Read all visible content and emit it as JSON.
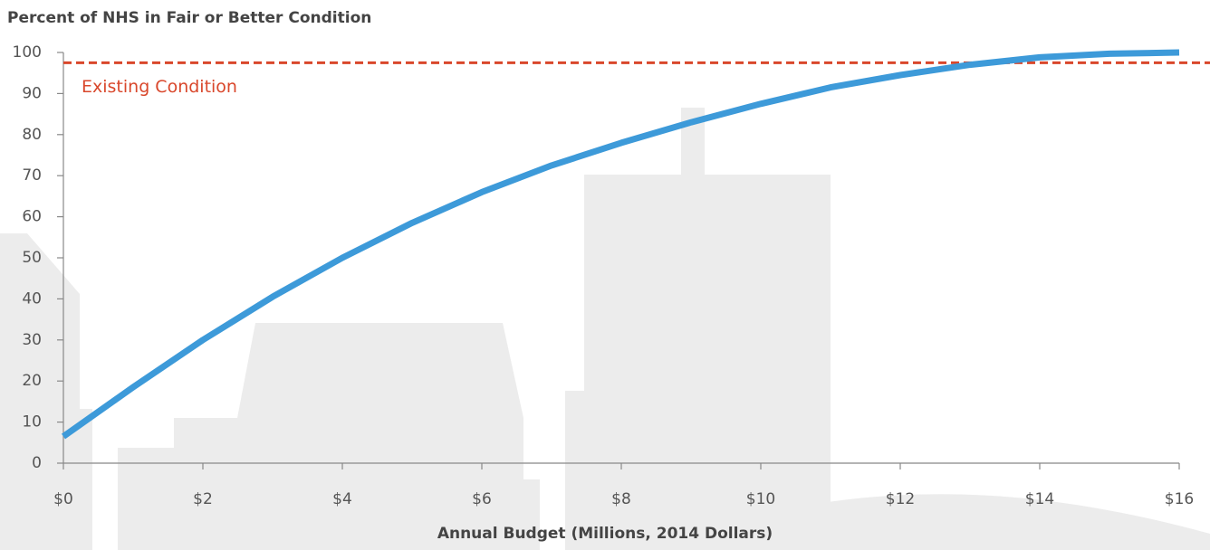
{
  "chart_data": {
    "type": "line",
    "title": "Percent of NHS in Fair or Better Condition",
    "x_label": "Annual Budget (Millions, 2014 Dollars)",
    "x": [
      0,
      1,
      2,
      3,
      4,
      5,
      6,
      7,
      8,
      9,
      10,
      11,
      12,
      13,
      14,
      15,
      16
    ],
    "series": [
      {
        "color": "#3d9ad9",
        "values": [
          6.5,
          18.5,
          30,
          40.5,
          50,
          58.5,
          66,
          72.5,
          78,
          83,
          87.5,
          91.5,
          94.5,
          97,
          98.8,
          99.7,
          100
        ]
      }
    ],
    "reference_line": {
      "value": 97.5,
      "label": "Existing Condition",
      "color": "#d9472b"
    },
    "xlim": [
      0,
      16
    ],
    "xticks": [
      {
        "value": 0,
        "label": "$0"
      },
      {
        "value": 2,
        "label": "$2"
      },
      {
        "value": 4,
        "label": "$4"
      },
      {
        "value": 6,
        "label": "$6"
      },
      {
        "value": 8,
        "label": "$8"
      },
      {
        "value": 10,
        "label": "$10"
      },
      {
        "value": 12,
        "label": "$12"
      },
      {
        "value": 14,
        "label": "$14"
      },
      {
        "value": 16,
        "label": "$16"
      }
    ],
    "ylim": [
      0,
      100
    ],
    "yticks": [
      0,
      10,
      20,
      30,
      40,
      50,
      60,
      70,
      80,
      90,
      100
    ]
  }
}
